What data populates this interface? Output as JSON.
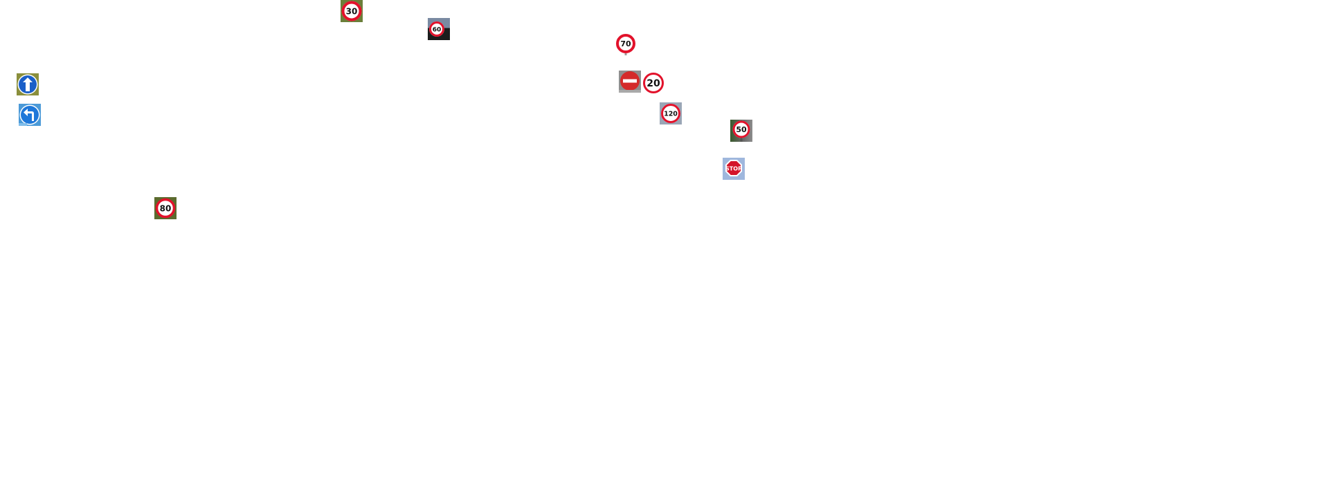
{
  "scene": {
    "background_color": "#ffffff",
    "signs": [
      {
        "kind": "speed-limit",
        "text": "30",
        "backdrop": "#6b7f3a"
      },
      {
        "kind": "speed-limit",
        "text": "60",
        "backdrop": "#2b2b2b"
      },
      {
        "kind": "speed-limit",
        "text": "70",
        "backdrop": "#ffffff"
      },
      {
        "kind": "mandatory-ahead",
        "backdrop": "#8a8f3c"
      },
      {
        "kind": "mandatory-turn-left",
        "backdrop": "#4b9ad8"
      },
      {
        "kind": "no-entry",
        "backdrop": "#8f8f8f"
      },
      {
        "kind": "speed-limit",
        "text": "20",
        "backdrop": "#ffffff"
      },
      {
        "kind": "speed-limit",
        "text": "120",
        "backdrop": "#9aa6b6"
      },
      {
        "kind": "speed-limit",
        "text": "50",
        "backdrop": "#3a5a2e"
      },
      {
        "kind": "stop",
        "text": "STOP",
        "backdrop": "#9fb7dd"
      },
      {
        "kind": "speed-limit",
        "text": "80",
        "backdrop": "#5b6b2e"
      }
    ]
  },
  "colors": {
    "sign_red": "#e2122b",
    "sign_blue": "#1a5fc8",
    "sign_white": "#ffffff",
    "sign_black": "#111111"
  }
}
